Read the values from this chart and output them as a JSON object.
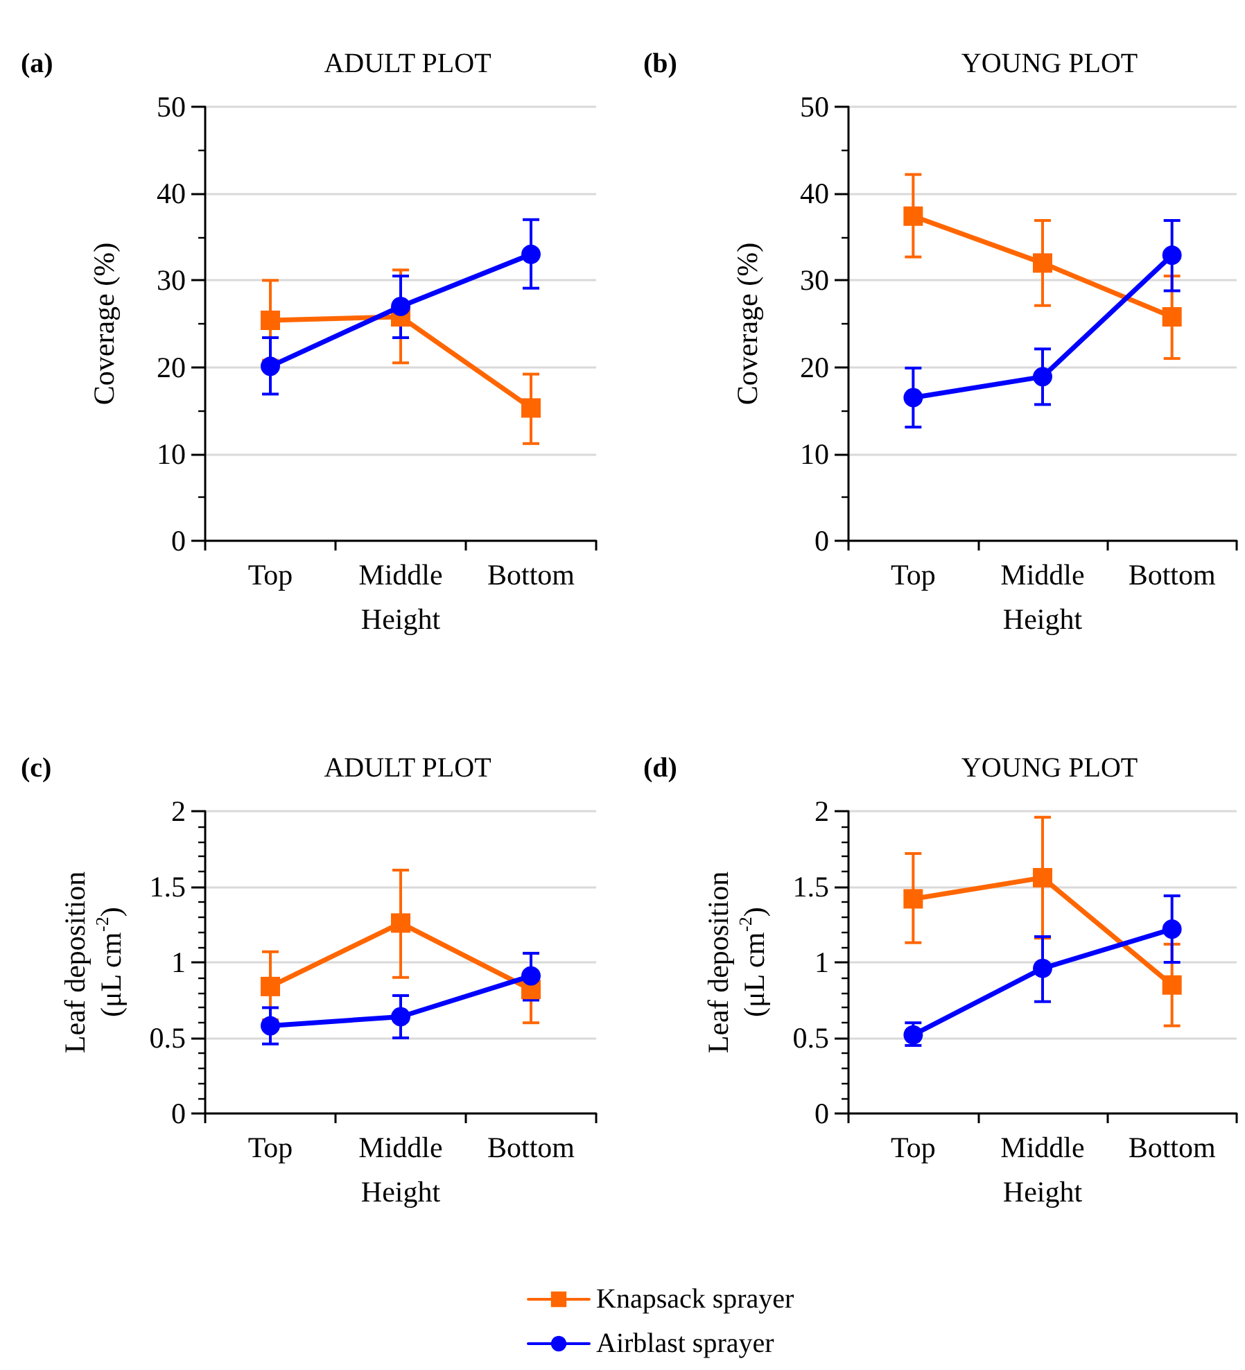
{
  "chart_data": [
    {
      "type": "line",
      "title": "ADULT PLOT",
      "annotations": [
        "(a)"
      ],
      "xlabel": "Height",
      "ylabel": "Coverage (%)",
      "categories": [
        "Top",
        "Middle",
        "Bottom"
      ],
      "ylim": [
        0,
        50
      ],
      "yticks": [
        0,
        10,
        20,
        30,
        40,
        50
      ],
      "grid": "y",
      "legend": false,
      "line_style": "solid",
      "series": [
        {
          "color": "#ff6600",
          "marker": "square",
          "values": [
            25.4,
            25.8,
            15.3
          ],
          "errors": [
            [
              20.8,
              30
            ],
            [
              20.5,
              31.2
            ],
            [
              11.2,
              19.2
            ]
          ]
        },
        {
          "color": "#0000ff",
          "marker": "circle",
          "values": [
            20.1,
            27,
            33
          ],
          "errors": [
            [
              16.9,
              23.4
            ],
            [
              23.4,
              30.5
            ],
            [
              29.1,
              37
            ]
          ]
        }
      ]
    },
    {
      "type": "line",
      "title": "YOUNG PLOT",
      "annotations": [
        "(b)"
      ],
      "xlabel": "Height",
      "ylabel": "Coverage (%)",
      "categories": [
        "Top",
        "Middle",
        "Bottom"
      ],
      "ylim": [
        0,
        50
      ],
      "yticks": [
        0,
        10,
        20,
        30,
        40,
        50
      ],
      "grid": "y",
      "legend": false,
      "line_style": "solid",
      "series": [
        {
          "color": "#ff6600",
          "marker": "square",
          "values": [
            37.4,
            32,
            25.8
          ],
          "errors": [
            [
              32.7,
              42.2
            ],
            [
              27.1,
              36.9
            ],
            [
              21,
              30.5
            ]
          ]
        },
        {
          "color": "#0000ff",
          "marker": "circle",
          "values": [
            16.5,
            18.9,
            32.9
          ],
          "errors": [
            [
              13.1,
              19.9
            ],
            [
              15.7,
              22.1
            ],
            [
              28.8,
              36.9
            ]
          ]
        }
      ]
    },
    {
      "type": "line",
      "title": "ADULT PLOT",
      "annotations": [
        "(c)"
      ],
      "xlabel": "Height",
      "ylabel": "Leaf deposition\n(μL cm$^{-2}$)",
      "categories": [
        "Top",
        "Middle",
        "Bottom"
      ],
      "ylim": [
        0,
        2
      ],
      "yticks": [
        0,
        0.5,
        1,
        1.5,
        2
      ],
      "grid": "y",
      "legend": "bottom",
      "line_style": "solid",
      "series": [
        {
          "name": "Knapsack sprayer",
          "color": "#ff6600",
          "marker": "square",
          "values": [
            0.84,
            1.26,
            0.82
          ],
          "errors": [
            [
              0.62,
              1.07
            ],
            [
              0.9,
              1.61
            ],
            [
              0.6,
              1.06
            ]
          ]
        },
        {
          "name": "Airblast sprayer",
          "color": "#0000ff",
          "marker": "circle",
          "values": [
            0.58,
            0.64,
            0.91
          ],
          "errors": [
            [
              0.46,
              0.7
            ],
            [
              0.5,
              0.78
            ],
            [
              0.75,
              1.06
            ]
          ]
        }
      ]
    },
    {
      "type": "line",
      "title": "YOUNG PLOT",
      "annotations": [
        "(d)"
      ],
      "xlabel": "Height",
      "ylabel": "Leaf deposition\n(μL cm$^{-2}$)",
      "categories": [
        "Top",
        "Middle",
        "Bottom"
      ],
      "ylim": [
        0,
        2
      ],
      "yticks": [
        0,
        0.5,
        1,
        1.5,
        2
      ],
      "grid": "y",
      "legend": false,
      "line_style": "solid",
      "series": [
        {
          "color": "#ff6600",
          "marker": "square",
          "values": [
            1.42,
            1.56,
            0.85
          ],
          "errors": [
            [
              1.13,
              1.72
            ],
            [
              1.16,
              1.96
            ],
            [
              0.58,
              1.12
            ]
          ]
        },
        {
          "color": "#0000ff",
          "marker": "circle",
          "values": [
            0.52,
            0.96,
            1.22
          ],
          "errors": [
            [
              0.45,
              0.6
            ],
            [
              0.74,
              1.17
            ],
            [
              1.0,
              1.44
            ]
          ]
        }
      ]
    }
  ]
}
